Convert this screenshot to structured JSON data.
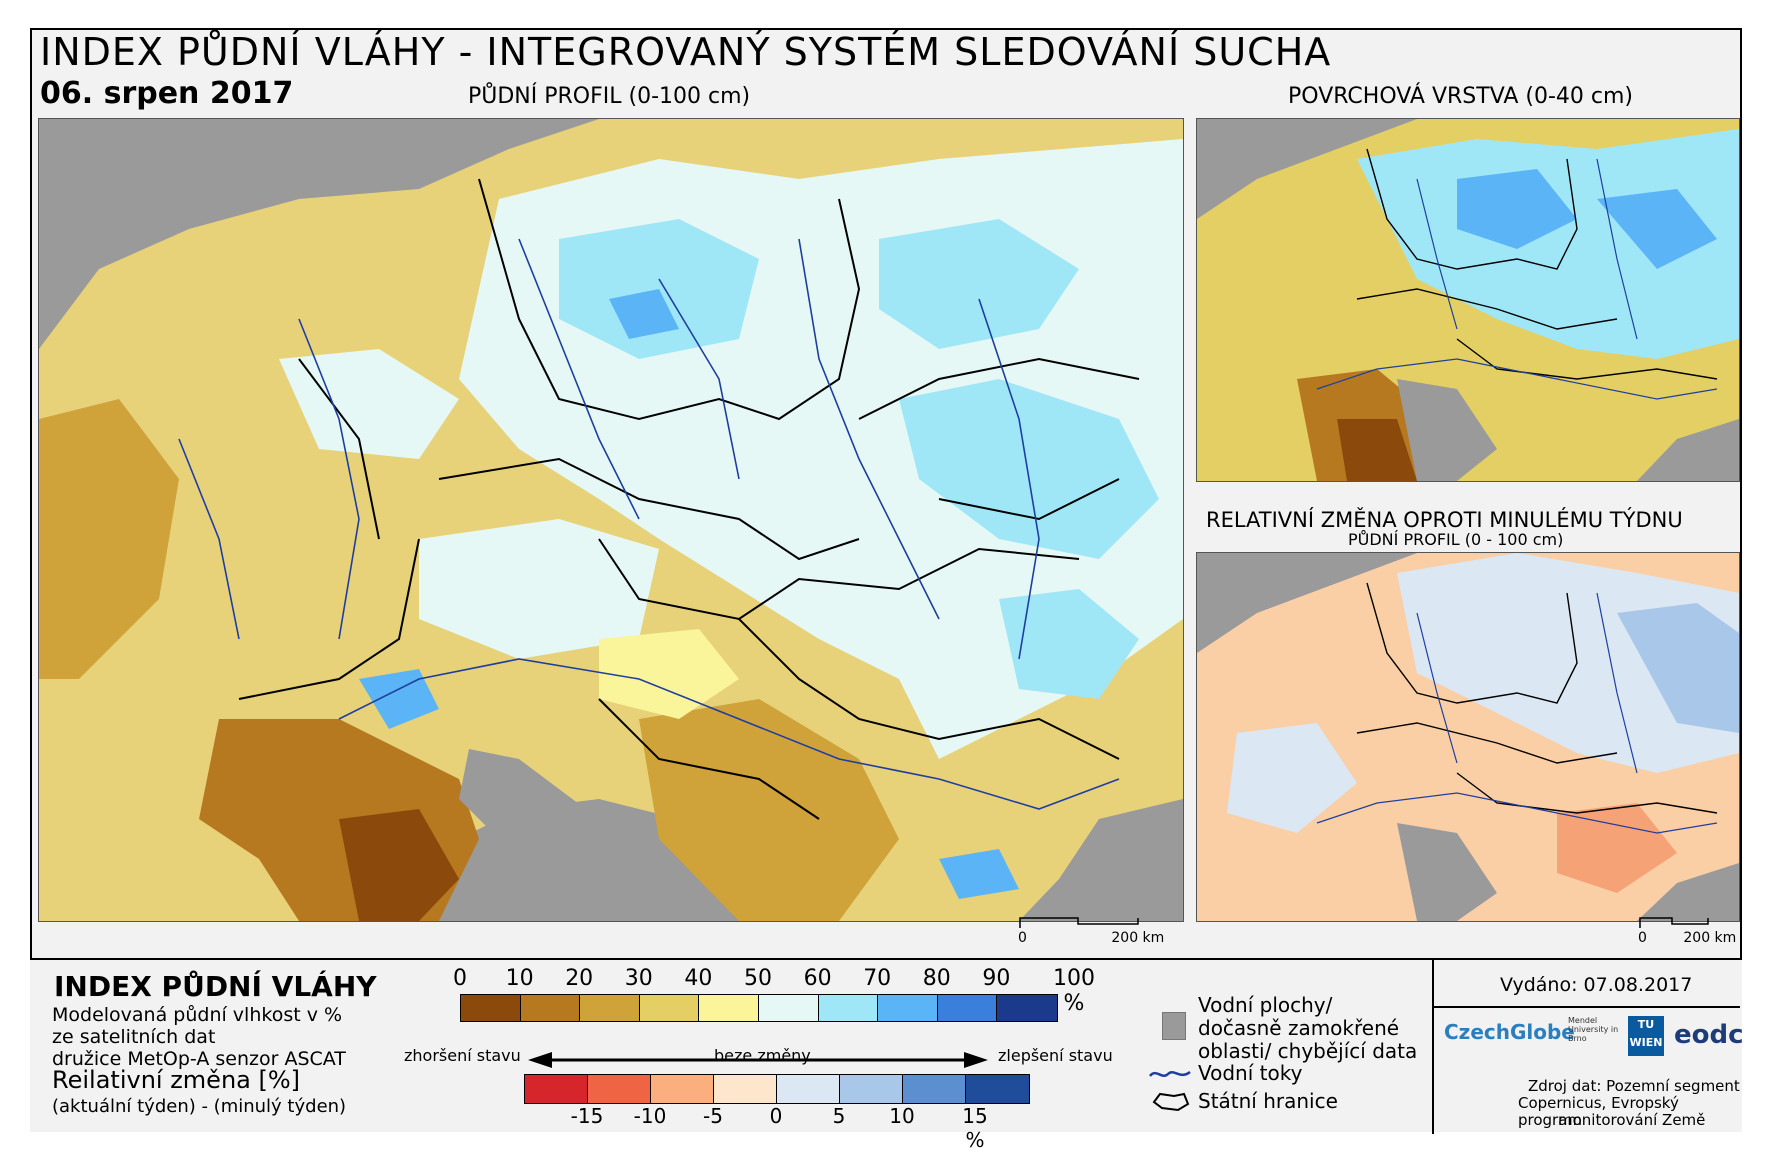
{
  "header": {
    "title": "INDEX PŮDNÍ VLÁHY - INTEGROVANÝ SYSTÉM SLEDOVÁNÍ SUCHA",
    "date": "06. srpen 2017"
  },
  "maps": {
    "main_label": "PŮDNÍ PROFIL (0-100 cm)",
    "surface_label": "POVRCHOVÁ VRSTVA (0-40 cm)",
    "change_label": "RELATIVNÍ ZMĚNA OPROTI MINULÉMU TÝDNU",
    "change_sublabel": "PŮDNÍ PROFIL (0 - 100 cm)",
    "scale_main": [
      "0",
      "200 km"
    ],
    "scale_small": [
      "0",
      "200 km"
    ]
  },
  "legend": {
    "title": "INDEX PŮDNÍ VLÁHY",
    "desc_lines": [
      "Modelovaná půdní vlhkost v %",
      "ze satelitních dat",
      "družice MetOp-A senzor ASCAT"
    ],
    "change_title": "Reilativní změna [%]",
    "change_desc": "(aktuální týden) - (minulý týden)",
    "moisture_ticks": [
      "0",
      "10",
      "20",
      "30",
      "40",
      "50",
      "60",
      "70",
      "80",
      "90",
      "100 %"
    ],
    "moisture_colors": [
      "#8b4a0c",
      "#b7791f",
      "#cfa23a",
      "#e3cf63",
      "#faf59a",
      "#e6f8f6",
      "#9fe7f7",
      "#5ab4f5",
      "#3a7fdb",
      "#1c3a8c"
    ],
    "arrow_worse": "zhoršení stavu",
    "arrow_same": "beze změny",
    "arrow_better": "zlepšení stavu",
    "change_ticks": [
      "-15",
      "-10",
      "-5",
      "0",
      "5",
      "10",
      "15 %"
    ],
    "change_colors": [
      "#d7262b",
      "#ef6445",
      "#fbae7e",
      "#fde6cc",
      "#dbe7f3",
      "#a9c7e8",
      "#5b8fd0",
      "#1f4d99"
    ],
    "items": {
      "water": "Vodní plochy/ dočasně zamokřené oblasti/ chybějící data",
      "rivers": "Vodní toky",
      "borders": "Státní hranice"
    },
    "issued": "Vydáno: 07.08.2017",
    "logos": [
      "CzechGlobe",
      "Mendel University in Brno",
      "TU WIEN",
      "eodc"
    ],
    "source_lines": [
      "Zdroj dat: Pozemní segment",
      "Copernicus, Evropský program",
      "monitorování Země"
    ],
    "colors": {
      "water_grey": "#9a9a9a",
      "river_blue": "#1f3fa0"
    }
  }
}
